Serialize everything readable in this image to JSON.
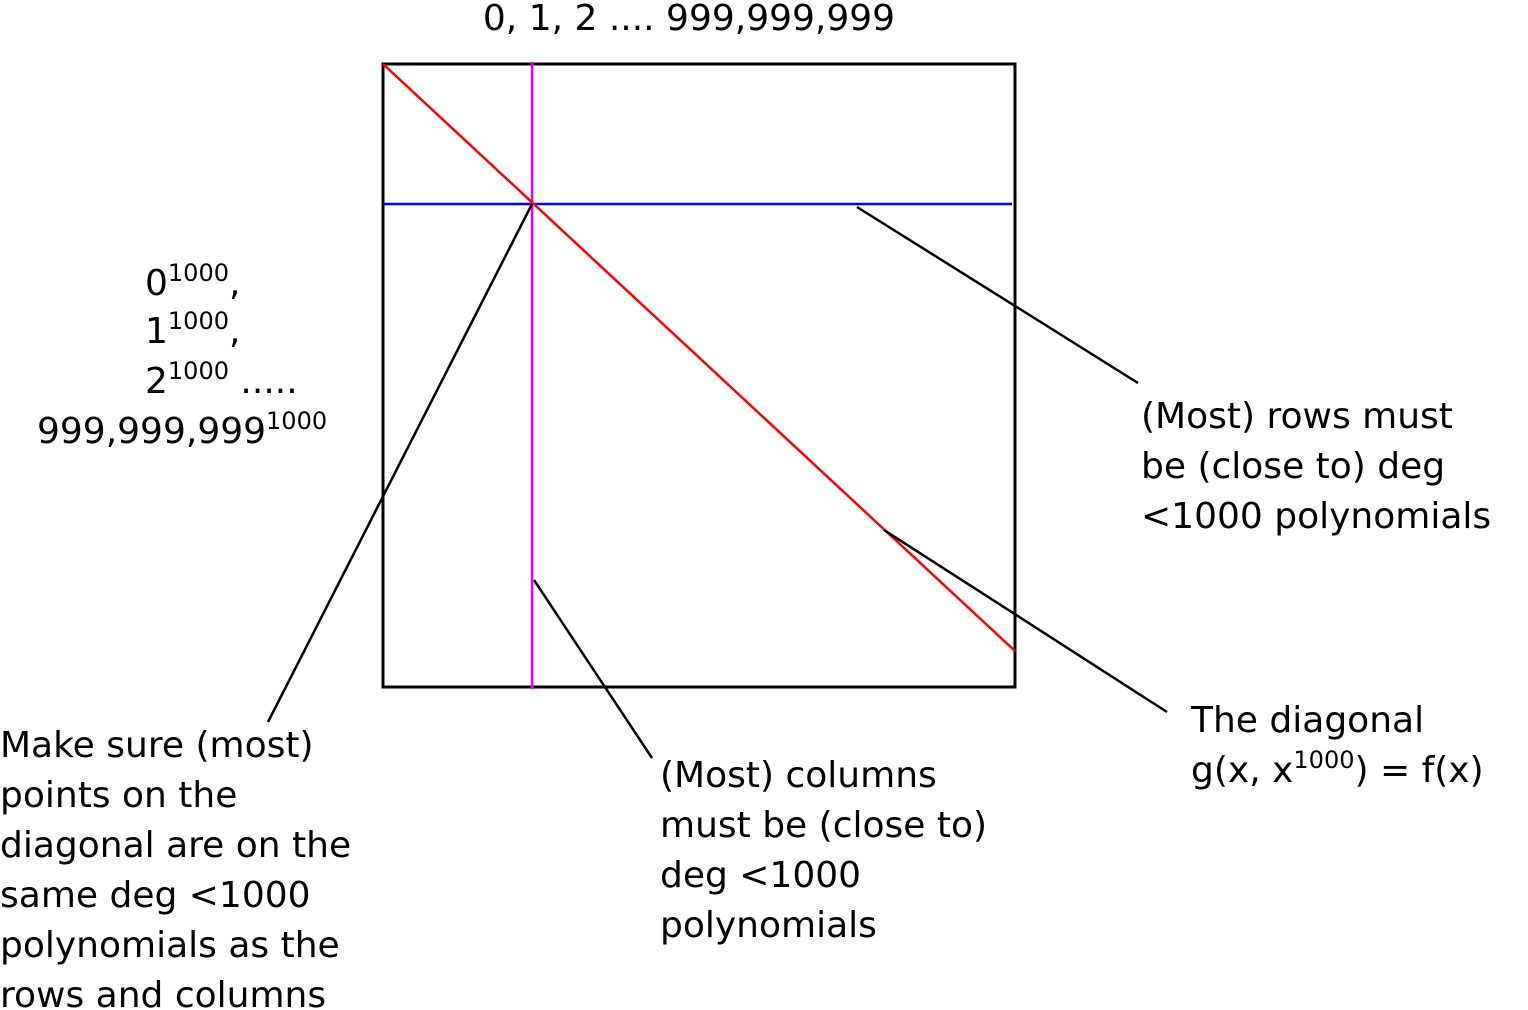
{
  "top_label": "0, 1, 2 .... 999,999,999",
  "left_labels": [
    {
      "base": "0",
      "sup": "1000",
      "suffix": ","
    },
    {
      "base": "1",
      "sup": "1000",
      "suffix": ","
    },
    {
      "base": "2",
      "sup": "1000",
      "suffix": " ....."
    },
    {
      "base": "999,999,999",
      "sup": "1000",
      "suffix": ""
    }
  ],
  "annotations": {
    "rows": [
      "(Most) rows must",
      "be (close to) deg",
      "<1000 polynomials"
    ],
    "diagonal": {
      "line1": "The diagonal",
      "line2_pre": "g(x, x",
      "line2_sup": "1000",
      "line2_post": ") = f(x)"
    },
    "columns": [
      "(Most) columns",
      "must be (close to)",
      "deg <1000",
      "polynomials"
    ],
    "points": [
      "Make sure (most)",
      "points on the",
      "diagonal are on the",
      "same deg <1000",
      "polynomials as the",
      "rows and columns"
    ]
  },
  "colors": {
    "square": "#000000",
    "diagonal": "#ff0000",
    "row": "#0000ff",
    "column": "#ee00ee",
    "leader": "#000000"
  }
}
